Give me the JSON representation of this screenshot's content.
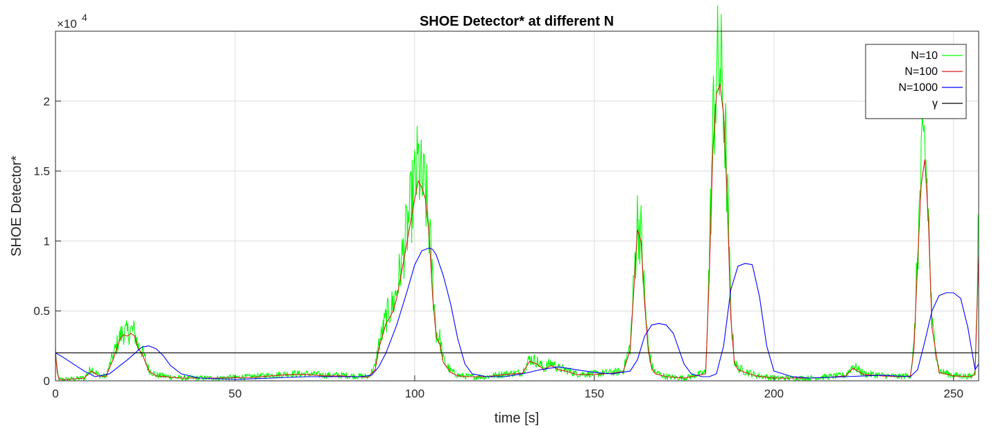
{
  "chart_data": {
    "type": "line",
    "title": "SHOE Detector* at different N",
    "xlabel": "time [s]",
    "ylabel": "SHOE Detector*",
    "y_exponent": "×10",
    "y_exponent_power": "4",
    "xlim": [
      0,
      257
    ],
    "ylim": [
      0,
      25000
    ],
    "xticks": [
      0,
      50,
      100,
      150,
      200,
      250
    ],
    "yticks": [
      0,
      5000,
      10000,
      15000,
      20000
    ],
    "xtick_labels": [
      "0",
      "50",
      "100",
      "150",
      "200",
      "250"
    ],
    "ytick_labels": [
      "0",
      "0.5",
      "1",
      "1.5",
      "2"
    ],
    "grid": true,
    "legend_position": "top-right",
    "series": [
      {
        "name": "N=10",
        "color": "#00ff00",
        "noisy": true,
        "x": [
          0,
          0.5,
          1,
          3,
          8,
          10,
          12,
          14,
          16,
          18,
          19,
          20,
          21,
          22,
          23,
          24,
          26,
          28,
          35,
          45,
          55,
          60,
          65,
          70,
          75,
          80,
          87,
          89,
          90,
          91,
          92,
          93,
          94,
          95,
          96,
          97,
          98,
          99,
          100,
          101,
          102,
          103,
          104,
          105,
          106,
          107,
          108,
          110,
          112,
          115,
          120,
          125,
          130,
          132,
          134,
          136,
          138,
          140,
          142,
          145,
          150,
          155,
          158,
          160,
          161,
          162,
          163,
          164,
          165,
          166,
          167,
          170,
          175,
          181,
          182,
          183,
          184,
          185,
          186,
          187,
          188,
          189,
          190,
          192,
          195,
          200,
          210,
          215,
          220,
          222,
          225,
          230,
          235,
          238,
          239,
          240,
          241,
          242,
          243,
          244,
          246,
          250,
          255,
          256,
          257
        ],
        "y": [
          2200,
          600,
          100,
          100,
          200,
          900,
          400,
          300,
          1800,
          3200,
          3500,
          3400,
          3600,
          3500,
          2500,
          2200,
          800,
          400,
          200,
          200,
          300,
          400,
          500,
          500,
          400,
          400,
          300,
          1000,
          2600,
          3500,
          4500,
          5000,
          5500,
          6500,
          8000,
          9500,
          11000,
          12500,
          14000,
          15500,
          14000,
          13500,
          11000,
          7000,
          3500,
          3000,
          1500,
          700,
          400,
          300,
          300,
          500,
          600,
          1600,
          1400,
          900,
          1300,
          900,
          800,
          500,
          500,
          600,
          700,
          2500,
          7000,
          11500,
          10500,
          6000,
          2500,
          1000,
          600,
          300,
          200,
          600,
          8500,
          18000,
          22000,
          22500,
          20000,
          14000,
          5000,
          1500,
          900,
          700,
          400,
          200,
          200,
          300,
          400,
          1100,
          500,
          400,
          300,
          400,
          2500,
          9000,
          15000,
          17000,
          12000,
          4000,
          700,
          400,
          300,
          600,
          12000
        ]
      },
      {
        "name": "N=100",
        "color": "#d81b1b",
        "noisy": false,
        "x": [
          0,
          0.5,
          1,
          3,
          8,
          10,
          12,
          14,
          16,
          18,
          19,
          20,
          21,
          22,
          23,
          24,
          26,
          28,
          35,
          45,
          55,
          60,
          65,
          70,
          75,
          80,
          87,
          89,
          90,
          91,
          92,
          93,
          94,
          95,
          96,
          97,
          98,
          99,
          100,
          101,
          102,
          103,
          104,
          105,
          106,
          107,
          108,
          110,
          112,
          115,
          120,
          125,
          130,
          132,
          134,
          136,
          138,
          140,
          142,
          145,
          150,
          155,
          158,
          160,
          161,
          162,
          163,
          164,
          165,
          166,
          167,
          170,
          175,
          181,
          182,
          183,
          184,
          185,
          186,
          187,
          188,
          189,
          190,
          192,
          195,
          200,
          210,
          215,
          220,
          222,
          225,
          230,
          235,
          238,
          239,
          240,
          241,
          242,
          243,
          244,
          246,
          250,
          255,
          256,
          257
        ],
        "y": [
          2000,
          600,
          100,
          100,
          200,
          700,
          350,
          300,
          1500,
          3000,
          3300,
          3200,
          3400,
          3200,
          2300,
          2000,
          700,
          350,
          200,
          200,
          250,
          350,
          450,
          450,
          350,
          350,
          250,
          800,
          2300,
          3200,
          4100,
          4500,
          5000,
          5900,
          7300,
          8700,
          10100,
          11600,
          13000,
          14300,
          13800,
          13000,
          10500,
          6000,
          3100,
          2600,
          1300,
          600,
          350,
          300,
          300,
          450,
          550,
          1400,
          1200,
          800,
          1100,
          800,
          700,
          450,
          450,
          550,
          650,
          2200,
          6500,
          10800,
          10000,
          5500,
          2200,
          900,
          500,
          300,
          200,
          500,
          7500,
          16500,
          20500,
          21200,
          19000,
          13000,
          4500,
          1300,
          800,
          600,
          350,
          200,
          200,
          250,
          350,
          900,
          450,
          350,
          300,
          350,
          2300,
          8500,
          14000,
          15800,
          11500,
          3800,
          600,
          350,
          300,
          500,
          9000
        ]
      },
      {
        "name": "N=1000",
        "color": "#0000ff",
        "noisy": false,
        "x": [
          0,
          2,
          5,
          8,
          11,
          15,
          20,
          24,
          26,
          28,
          30,
          32,
          35,
          40,
          50,
          60,
          70,
          80,
          85,
          88,
          90,
          92,
          95,
          98,
          100,
          102,
          104,
          105,
          106,
          108,
          110,
          112,
          114,
          116,
          120,
          125,
          130,
          135,
          140,
          145,
          150,
          155,
          160,
          162,
          164,
          166,
          168,
          170,
          172,
          175,
          177,
          180,
          182,
          184,
          186,
          188,
          190,
          192,
          194,
          196,
          198,
          200,
          205,
          210,
          220,
          230,
          238,
          240,
          242,
          244,
          246,
          248,
          250,
          252,
          254,
          256,
          257
        ],
        "y": [
          2000,
          1700,
          1200,
          700,
          300,
          500,
          1500,
          2400,
          2500,
          2300,
          1800,
          1100,
          500,
          200,
          100,
          200,
          300,
          300,
          300,
          400,
          1000,
          2000,
          4000,
          6500,
          8300,
          9300,
          9500,
          9400,
          9000,
          7500,
          5500,
          3000,
          1200,
          500,
          300,
          300,
          500,
          800,
          1000,
          800,
          600,
          500,
          700,
          1500,
          3200,
          4000,
          4100,
          4000,
          3400,
          1200,
          500,
          300,
          300,
          500,
          2500,
          6500,
          8200,
          8400,
          8300,
          6000,
          2500,
          700,
          300,
          200,
          300,
          400,
          300,
          800,
          2800,
          5000,
          6100,
          6300,
          6300,
          5900,
          3800,
          800,
          1200
        ]
      },
      {
        "name": "γ",
        "color": "#000000",
        "noisy": false,
        "x": [
          0,
          257
        ],
        "y": [
          2000,
          2000
        ]
      }
    ]
  }
}
